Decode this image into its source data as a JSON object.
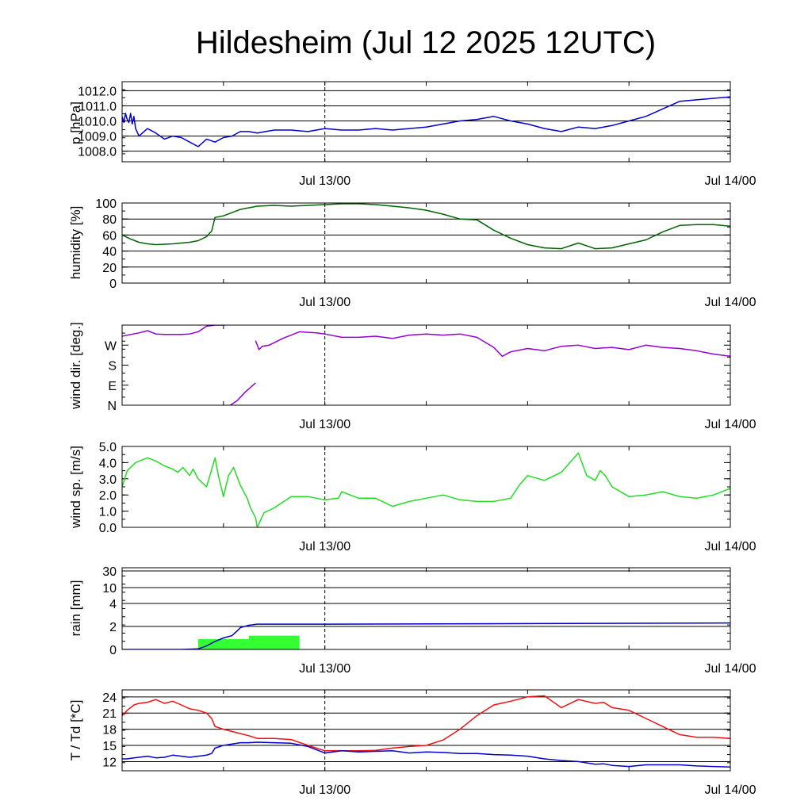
{
  "title": "Hildesheim (Jul 12 2025 12UTC)",
  "colors": {
    "pressure": "#0000cc",
    "humidity": "#006400",
    "wind_dir": "#9400d3",
    "wind_speed": "#22dd22",
    "rain_bar": "#33ff33",
    "rain_line": "#0000cc",
    "temperature": "#ee1111",
    "dewpoint": "#0000cc"
  },
  "x_axis": {
    "tick_labels": [
      "Jul 13/00",
      "Jul 14/00"
    ],
    "range_hours": [
      0,
      36
    ],
    "tick_hours": [
      12,
      36
    ],
    "dashed_line_hour": 12
  },
  "chart_data": [
    {
      "type": "line",
      "name": "pressure",
      "ylabel": "p [hPa]",
      "ylim": [
        1007.3,
        1012.6
      ],
      "yticks": [
        1008,
        1009,
        1010,
        1011,
        1012
      ],
      "yticklabels": [
        "1008.0",
        "1009.0",
        "1010.0",
        "1011.0",
        "1012.0"
      ],
      "grid": true,
      "x": [
        0,
        0.1,
        0.2,
        0.3,
        0.4,
        0.5,
        0.6,
        0.7,
        0.8,
        1,
        1.5,
        2,
        2.5,
        3,
        3.5,
        4,
        4.5,
        5,
        5.5,
        6,
        6.5,
        7,
        7.5,
        8,
        9,
        10,
        11,
        12,
        13,
        14,
        15,
        16,
        17,
        18,
        19,
        20,
        21,
        22,
        23,
        24,
        25,
        26,
        27,
        28,
        29,
        30,
        31,
        32,
        33,
        34,
        35,
        36
      ],
      "series": [
        {
          "values": [
            1010.3,
            1009.9,
            1010.5,
            1010.1,
            1009.9,
            1010.5,
            1009.8,
            1010.3,
            1009.5,
            1009.0,
            1009.5,
            1009.2,
            1008.8,
            1009.0,
            1008.9,
            1008.6,
            1008.3,
            1008.8,
            1008.6,
            1008.9,
            1009.0,
            1009.3,
            1009.3,
            1009.2,
            1009.4,
            1009.4,
            1009.3,
            1009.5,
            1009.4,
            1009.4,
            1009.5,
            1009.4,
            1009.5,
            1009.6,
            1009.8,
            1010.0,
            1010.1,
            1010.3,
            1010.0,
            1009.8,
            1009.5,
            1009.3,
            1009.6,
            1009.5,
            1009.7,
            1010.0,
            1010.3,
            1010.8,
            1011.3,
            1011.4,
            1011.5,
            1011.6
          ]
        }
      ]
    },
    {
      "type": "line",
      "name": "humidity",
      "ylabel": "humidity [%]",
      "ylim": [
        0,
        100
      ],
      "yticks": [
        0,
        20,
        40,
        60,
        80,
        100
      ],
      "yticklabels": [
        "0",
        "20",
        "40",
        "60",
        "80",
        "100"
      ],
      "grid": true,
      "x": [
        0,
        0.5,
        1,
        1.5,
        2,
        3,
        4,
        4.5,
        5,
        5.3,
        5.5,
        6,
        7,
        8,
        9,
        10,
        11,
        12,
        13,
        14,
        15,
        16,
        17,
        18,
        19,
        20,
        21,
        22,
        23,
        24,
        25,
        26,
        27,
        28,
        29,
        30,
        31,
        32,
        33,
        34,
        35,
        36
      ],
      "series": [
        {
          "values": [
            60,
            55,
            51,
            49,
            48,
            49,
            51,
            53,
            58,
            65,
            82,
            84,
            92,
            96,
            97,
            96,
            97,
            98,
            99,
            99,
            98,
            96,
            94,
            91,
            86,
            80,
            79,
            66,
            56,
            48,
            44,
            43,
            50,
            43,
            44,
            49,
            54,
            64,
            72,
            73,
            73,
            71
          ]
        }
      ]
    },
    {
      "type": "line",
      "name": "wind_direction",
      "ylabel": "wind dir. [deg.]",
      "ylim": [
        0,
        360
      ],
      "yticks": [
        0,
        90,
        180,
        270
      ],
      "yticklabels": [
        "N",
        "E",
        "S",
        "W"
      ],
      "grid": false,
      "segments": [
        {
          "x": [
            0,
            0.5,
            1,
            1.5,
            2,
            2.5,
            3,
            3.5,
            4,
            4.5,
            5,
            5.3,
            5.5,
            6,
            6.4
          ],
          "values": [
            310,
            318,
            325,
            335,
            320,
            318,
            318,
            318,
            320,
            330,
            355,
            358,
            360,
            360,
            362
          ]
        },
        {
          "x": [
            6.3,
            6.8,
            7.3,
            7.9
          ],
          "values": [
            -5,
            20,
            60,
            100
          ]
        },
        {
          "x": [
            7.9,
            8.1,
            8.3,
            8.7,
            9.5,
            10.5,
            11.5,
            12,
            13,
            14,
            15,
            16,
            17,
            18,
            19,
            20,
            21,
            22,
            22.5,
            23,
            24,
            25,
            26,
            27,
            28,
            29,
            30,
            31,
            32,
            33,
            34,
            35,
            36
          ],
          "values": [
            290,
            250,
            265,
            270,
            300,
            330,
            325,
            320,
            305,
            305,
            310,
            300,
            315,
            320,
            315,
            320,
            305,
            260,
            220,
            240,
            255,
            245,
            265,
            270,
            255,
            260,
            250,
            270,
            260,
            255,
            245,
            230,
            220
          ]
        }
      ]
    },
    {
      "type": "line",
      "name": "wind_speed",
      "ylabel": "wind sp. [m/s]",
      "ylim": [
        0,
        5
      ],
      "yticks": [
        0,
        1,
        2,
        3,
        4,
        5
      ],
      "yticklabels": [
        "0.0",
        "1.0",
        "2.0",
        "3.0",
        "4.0",
        "5.0"
      ],
      "grid": false,
      "x": [
        0,
        0.3,
        0.8,
        1.5,
        2,
        2.5,
        3,
        3.3,
        3.6,
        4,
        4.2,
        4.5,
        5,
        5.5,
        5.7,
        6,
        6.3,
        6.6,
        7,
        7.4,
        7.6,
        7.9,
        8,
        8.4,
        9,
        10,
        11,
        12,
        12.8,
        13,
        14,
        15,
        16,
        17,
        18,
        19,
        20,
        21,
        22,
        22.5,
        23,
        23.5,
        24,
        25,
        26,
        27,
        27.5,
        28,
        28.3,
        28.6,
        29,
        30,
        31,
        32,
        33,
        34,
        35,
        36
      ],
      "series": [
        {
          "values": [
            2.5,
            3.5,
            4.0,
            4.3,
            4.1,
            3.8,
            3.6,
            3.4,
            3.7,
            3.2,
            3.6,
            3.0,
            2.5,
            4.3,
            3.2,
            1.9,
            3.2,
            3.7,
            2.6,
            1.8,
            1.2,
            0.6,
            0.0,
            0.9,
            1.2,
            1.9,
            1.9,
            1.7,
            1.8,
            2.2,
            1.8,
            1.8,
            1.3,
            1.6,
            1.8,
            2.0,
            1.7,
            1.6,
            1.6,
            1.7,
            1.8,
            2.6,
            3.2,
            2.9,
            3.4,
            4.6,
            3.2,
            2.9,
            3.5,
            3.2,
            2.5,
            1.9,
            2.0,
            2.2,
            1.9,
            1.8,
            2.0,
            2.4
          ]
        }
      ]
    },
    {
      "type": "bar+line",
      "name": "rain",
      "ylabel": "rain [mm]",
      "yticks": [
        0,
        2,
        4,
        10,
        30
      ],
      "yticklabels": [
        "0",
        "2",
        "4",
        "10",
        "30"
      ],
      "grid": true,
      "bars": [
        {
          "x0": 4.5,
          "x1": 7.5,
          "value": 0.9
        },
        {
          "x0": 7.5,
          "x1": 10.5,
          "value": 1.2
        }
      ],
      "x": [
        0,
        3.5,
        4.5,
        5.0,
        5.5,
        6.0,
        6.5,
        6.8,
        7.0,
        7.5,
        8.0,
        12,
        24,
        36
      ],
      "series": [
        {
          "name": "accumulated",
          "values": [
            0,
            0,
            0.05,
            0.3,
            0.7,
            1.0,
            1.2,
            1.6,
            1.9,
            2.1,
            2.2,
            2.2,
            2.25,
            2.3
          ]
        }
      ]
    },
    {
      "type": "line",
      "name": "temperature",
      "ylabel": "T / Td [*C]",
      "ylim": [
        10.3,
        25.3
      ],
      "yticks": [
        12,
        15,
        18,
        21,
        24
      ],
      "yticklabels": [
        "12",
        "15",
        "18",
        "21",
        "24"
      ],
      "grid": true,
      "x": [
        0,
        0.3,
        0.7,
        1,
        1.5,
        2,
        2.5,
        3,
        3.5,
        4,
        4.5,
        5,
        5.3,
        5.5,
        6,
        7,
        7.5,
        8,
        9,
        10,
        11,
        12,
        13,
        14,
        15,
        16,
        17,
        18,
        19,
        20,
        21,
        22,
        23,
        24,
        25,
        26,
        27,
        28,
        28.5,
        29,
        30,
        31,
        32,
        33,
        34,
        35,
        36
      ],
      "series": [
        {
          "name": "T",
          "values": [
            20.5,
            21.5,
            22.5,
            22.8,
            23.0,
            23.5,
            22.8,
            23.2,
            22.5,
            21.8,
            21.5,
            21.0,
            20.0,
            18.5,
            18.0,
            17.2,
            16.8,
            16.3,
            16.3,
            16.1,
            15.0,
            14.0,
            14.0,
            14.0,
            14.1,
            14.5,
            14.8,
            15.0,
            16.0,
            18.0,
            20.5,
            22.5,
            23.2,
            24.0,
            24.2,
            22.0,
            23.5,
            22.8,
            23.0,
            22.0,
            21.5,
            20.0,
            18.5,
            17.0,
            16.5,
            16.5,
            16.3
          ]
        },
        {
          "name": "Td",
          "values": [
            12.5,
            12.5,
            12.7,
            12.8,
            13.0,
            12.7,
            12.8,
            13.2,
            13.0,
            12.8,
            13.0,
            13.2,
            13.5,
            14.5,
            15.0,
            15.5,
            15.5,
            15.6,
            15.5,
            15.4,
            14.8,
            13.6,
            14.0,
            13.8,
            13.9,
            14.0,
            13.6,
            13.8,
            13.7,
            13.5,
            13.5,
            13.3,
            13.2,
            13.0,
            12.5,
            12.2,
            12.0,
            11.5,
            11.6,
            11.3,
            11.1,
            11.4,
            11.4,
            11.4,
            11.2,
            11.1,
            11.0
          ]
        }
      ]
    }
  ]
}
